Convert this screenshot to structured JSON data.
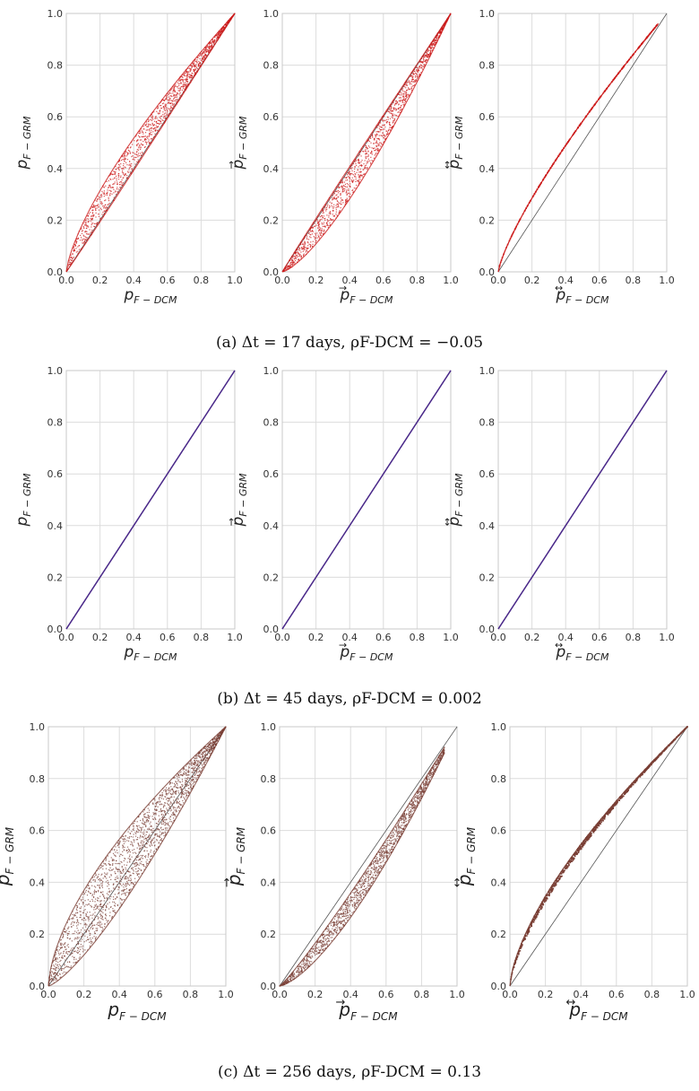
{
  "chart_data": [
    {
      "type": "scatter",
      "row": 0,
      "col": 0,
      "style": "band",
      "color": "#cc1a1a",
      "diag_color": "#555555",
      "xlabel": {
        "main": "p",
        "sub": "F − DCM",
        "sup": ""
      },
      "ylabel": {
        "main": "p",
        "sub": "F − GRM",
        "sup": ""
      },
      "xlim": [
        0,
        1
      ],
      "ylim": [
        0,
        1
      ],
      "xticks": [
        "0.0",
        "0.2",
        "0.4",
        "0.6",
        "0.8",
        "1.0"
      ],
      "yticks": [
        "0.0",
        "0.2",
        "0.4",
        "0.6",
        "0.8",
        "1.0"
      ],
      "grid": true,
      "series": [
        {
          "k": [
            0.72,
            1.02
          ],
          "n": 1400
        }
      ]
    },
    {
      "type": "scatter",
      "row": 0,
      "col": 1,
      "style": "band",
      "color": "#cc1a1a",
      "diag_color": "#555555",
      "xlabel": {
        "main": "p",
        "sub": "F − DCM",
        "sup": "→"
      },
      "ylabel": {
        "main": "p",
        "sub": "F − GRM",
        "sup": "→"
      },
      "xlim": [
        0,
        1
      ],
      "ylim": [
        0,
        1
      ],
      "xticks": [
        "0.0",
        "0.2",
        "0.4",
        "0.6",
        "0.8",
        "1.0"
      ],
      "yticks": [
        "0.0",
        "0.2",
        "0.4",
        "0.6",
        "0.8",
        "1.0"
      ],
      "grid": true,
      "series": [
        {
          "k": [
            0.98,
            1.38
          ],
          "n": 1400
        }
      ]
    },
    {
      "type": "scatter",
      "row": 0,
      "col": 2,
      "style": "curve",
      "color": "#cc1a1a",
      "diag_color": "#555555",
      "xlabel": {
        "main": "p",
        "sub": "F − DCM",
        "sup": "↔"
      },
      "ylabel": {
        "main": "p",
        "sub": "F − GRM",
        "sup": "↔"
      },
      "xlim": [
        0,
        1
      ],
      "ylim": [
        0,
        1
      ],
      "xticks": [
        "0.0",
        "0.2",
        "0.4",
        "0.6",
        "0.8",
        "1.0"
      ],
      "yticks": [
        "0.0",
        "0.2",
        "0.4",
        "0.6",
        "0.8",
        "1.0"
      ],
      "grid": true,
      "series": [
        {
          "k": [
            0.78
          ],
          "xmax": 0.95,
          "n": 300
        }
      ]
    },
    {
      "type": "line",
      "row": 1,
      "col": 0,
      "style": "identity",
      "color": "#4b2a8a",
      "diag_color": "#4b2a8a",
      "xlabel": {
        "main": "p",
        "sub": "F − DCM",
        "sup": ""
      },
      "ylabel": {
        "main": "p",
        "sub": "F − GRM",
        "sup": ""
      },
      "xlim": [
        0,
        1
      ],
      "ylim": [
        0,
        1
      ],
      "xticks": [
        "0.0",
        "0.2",
        "0.4",
        "0.6",
        "0.8",
        "1.0"
      ],
      "yticks": [
        "0.0",
        "0.2",
        "0.4",
        "0.6",
        "0.8",
        "1.0"
      ],
      "grid": true,
      "series": [
        {
          "x": [
            0,
            1
          ],
          "y": [
            0,
            1
          ]
        }
      ]
    },
    {
      "type": "line",
      "row": 1,
      "col": 1,
      "style": "identity",
      "color": "#4b2a8a",
      "diag_color": "#4b2a8a",
      "xlabel": {
        "main": "p",
        "sub": "F − DCM",
        "sup": "→"
      },
      "ylabel": {
        "main": "p",
        "sub": "F − GRM",
        "sup": "→"
      },
      "xlim": [
        0,
        1
      ],
      "ylim": [
        0,
        1
      ],
      "xticks": [
        "0.0",
        "0.2",
        "0.4",
        "0.6",
        "0.8",
        "1.0"
      ],
      "yticks": [
        "0.0",
        "0.2",
        "0.4",
        "0.6",
        "0.8",
        "1.0"
      ],
      "grid": true,
      "series": [
        {
          "x": [
            0,
            1
          ],
          "y": [
            0,
            1
          ]
        }
      ]
    },
    {
      "type": "line",
      "row": 1,
      "col": 2,
      "style": "identity",
      "color": "#4b2a8a",
      "diag_color": "#4b2a8a",
      "xlabel": {
        "main": "p",
        "sub": "F − DCM",
        "sup": "↔"
      },
      "ylabel": {
        "main": "p",
        "sub": "F − GRM",
        "sup": "↔"
      },
      "xlim": [
        0,
        1
      ],
      "ylim": [
        0,
        1
      ],
      "xticks": [
        "0.0",
        "0.2",
        "0.4",
        "0.6",
        "0.8",
        "1.0"
      ],
      "yticks": [
        "0.0",
        "0.2",
        "0.4",
        "0.6",
        "0.8",
        "1.0"
      ],
      "grid": true,
      "series": [
        {
          "x": [
            0,
            1
          ],
          "y": [
            0,
            1
          ]
        }
      ]
    },
    {
      "type": "scatter",
      "row": 2,
      "col": 0,
      "style": "band",
      "color": "#7a3f35",
      "diag_color": "#555555",
      "xlabel": {
        "main": "p",
        "sub": "F − DCM",
        "sup": ""
      },
      "ylabel": {
        "main": "p",
        "sub": "F − GRM",
        "sup": ""
      },
      "xlim": [
        0,
        1
      ],
      "ylim": [
        0,
        1
      ],
      "xticks": [
        "0.0",
        "0.2",
        "0.4",
        "0.6",
        "0.8",
        "1.0"
      ],
      "yticks": [
        "0.0",
        "0.2",
        "0.4",
        "0.6",
        "0.8",
        "1.0"
      ],
      "grid": true,
      "series": [
        {
          "k": [
            0.62,
            1.32
          ],
          "n": 2200
        }
      ]
    },
    {
      "type": "scatter",
      "row": 2,
      "col": 1,
      "style": "band",
      "color": "#7a3f35",
      "diag_color": "#555555",
      "xlabel": {
        "main": "p",
        "sub": "F − DCM",
        "sup": "→"
      },
      "ylabel": {
        "main": "p",
        "sub": "F − GRM",
        "sup": "→"
      },
      "xlim": [
        0,
        1
      ],
      "ylim": [
        0,
        1
      ],
      "xticks": [
        "0.0",
        "0.2",
        "0.4",
        "0.6",
        "0.8",
        "1.0"
      ],
      "yticks": [
        "0.0",
        "0.2",
        "0.4",
        "0.6",
        "0.8",
        "1.0"
      ],
      "grid": true,
      "series": [
        {
          "k": [
            1.12,
            1.45
          ],
          "xmax": 0.93,
          "n": 1600
        }
      ]
    },
    {
      "type": "scatter",
      "row": 2,
      "col": 2,
      "style": "curve",
      "color": "#7a3f35",
      "diag_color": "#555555",
      "xlabel": {
        "main": "p",
        "sub": "F − DCM",
        "sup": "↔"
      },
      "ylabel": {
        "main": "p",
        "sub": "F − GRM",
        "sup": "↔"
      },
      "xlim": [
        0,
        1
      ],
      "ylim": [
        0,
        1
      ],
      "xticks": [
        "0.0",
        "0.2",
        "0.4",
        "0.6",
        "0.8",
        "1.0"
      ],
      "yticks": [
        "0.0",
        "0.2",
        "0.4",
        "0.6",
        "0.8",
        "1.0"
      ],
      "grid": true,
      "series": [
        {
          "k": [
            0.66,
            0.7
          ],
          "n": 900
        }
      ]
    }
  ],
  "captions": [
    {
      "text": "(a) Δt = 17 days, ρF-DCM = −0.05"
    },
    {
      "text": "(b) Δt = 45 days, ρF-DCM = 0.002"
    },
    {
      "text": "(c) Δt = 256 days, ρF-DCM = 0.13"
    }
  ]
}
